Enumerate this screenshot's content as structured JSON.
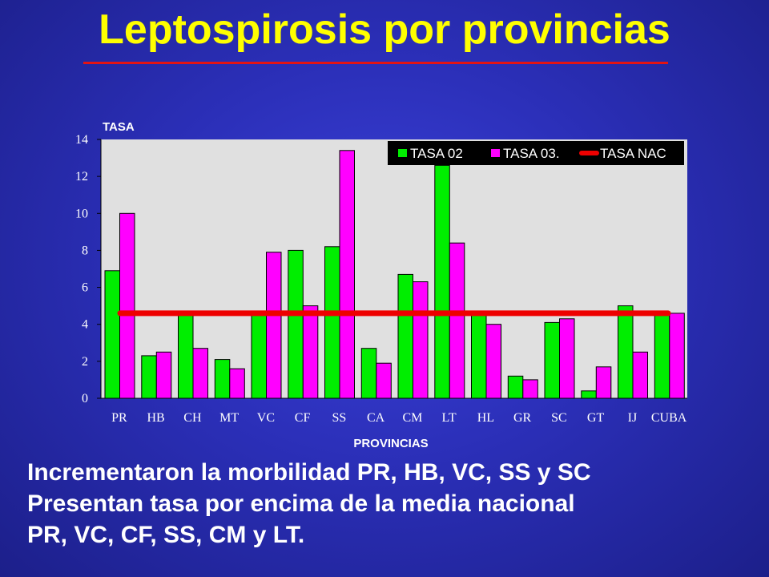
{
  "title": "Leptospirosis por provincias",
  "colors": {
    "background": "#2b2fb8",
    "title": "#ffff00",
    "rule": "#e31414",
    "plot_bg": "#e0e0e0",
    "tasa02": "#00ee00",
    "tasa03": "#ff00ff",
    "nac": "#ee0000"
  },
  "chart_data": {
    "type": "bar",
    "categories": [
      "PR",
      "HB",
      "CH",
      "MT",
      "VC",
      "CF",
      "SS",
      "CA",
      "CM",
      "LT",
      "HL",
      "GR",
      "SC",
      "GT",
      "IJ",
      "CUBA"
    ],
    "series": [
      {
        "name": "TASA 02",
        "values": [
          6.9,
          2.3,
          4.6,
          2.1,
          4.6,
          8.0,
          8.2,
          2.7,
          6.7,
          12.6,
          4.6,
          1.2,
          4.1,
          0.4,
          5.0,
          4.6
        ]
      },
      {
        "name": "TASA 03.",
        "values": [
          10.0,
          2.5,
          2.7,
          1.6,
          7.9,
          5.0,
          13.4,
          1.9,
          6.3,
          8.4,
          4.0,
          1.0,
          4.3,
          1.7,
          2.5,
          4.6
        ]
      }
    ],
    "reference_line": {
      "name": "TASA NAC",
      "value": 4.6
    },
    "ylabel": "TASA",
    "xlabel": "PROVINCIAS",
    "ylim": [
      0,
      14
    ],
    "yticks": [
      "0",
      "2",
      "4",
      "6",
      "8",
      "10",
      "12",
      "14"
    ],
    "grid": false,
    "legend_position": "top-right"
  },
  "notes": [
    "Incrementaron la morbilidad PR, HB, VC, SS y SC",
    "Presentan tasa por encima de la media nacional",
    "PR, VC, CF, SS, CM y LT."
  ]
}
